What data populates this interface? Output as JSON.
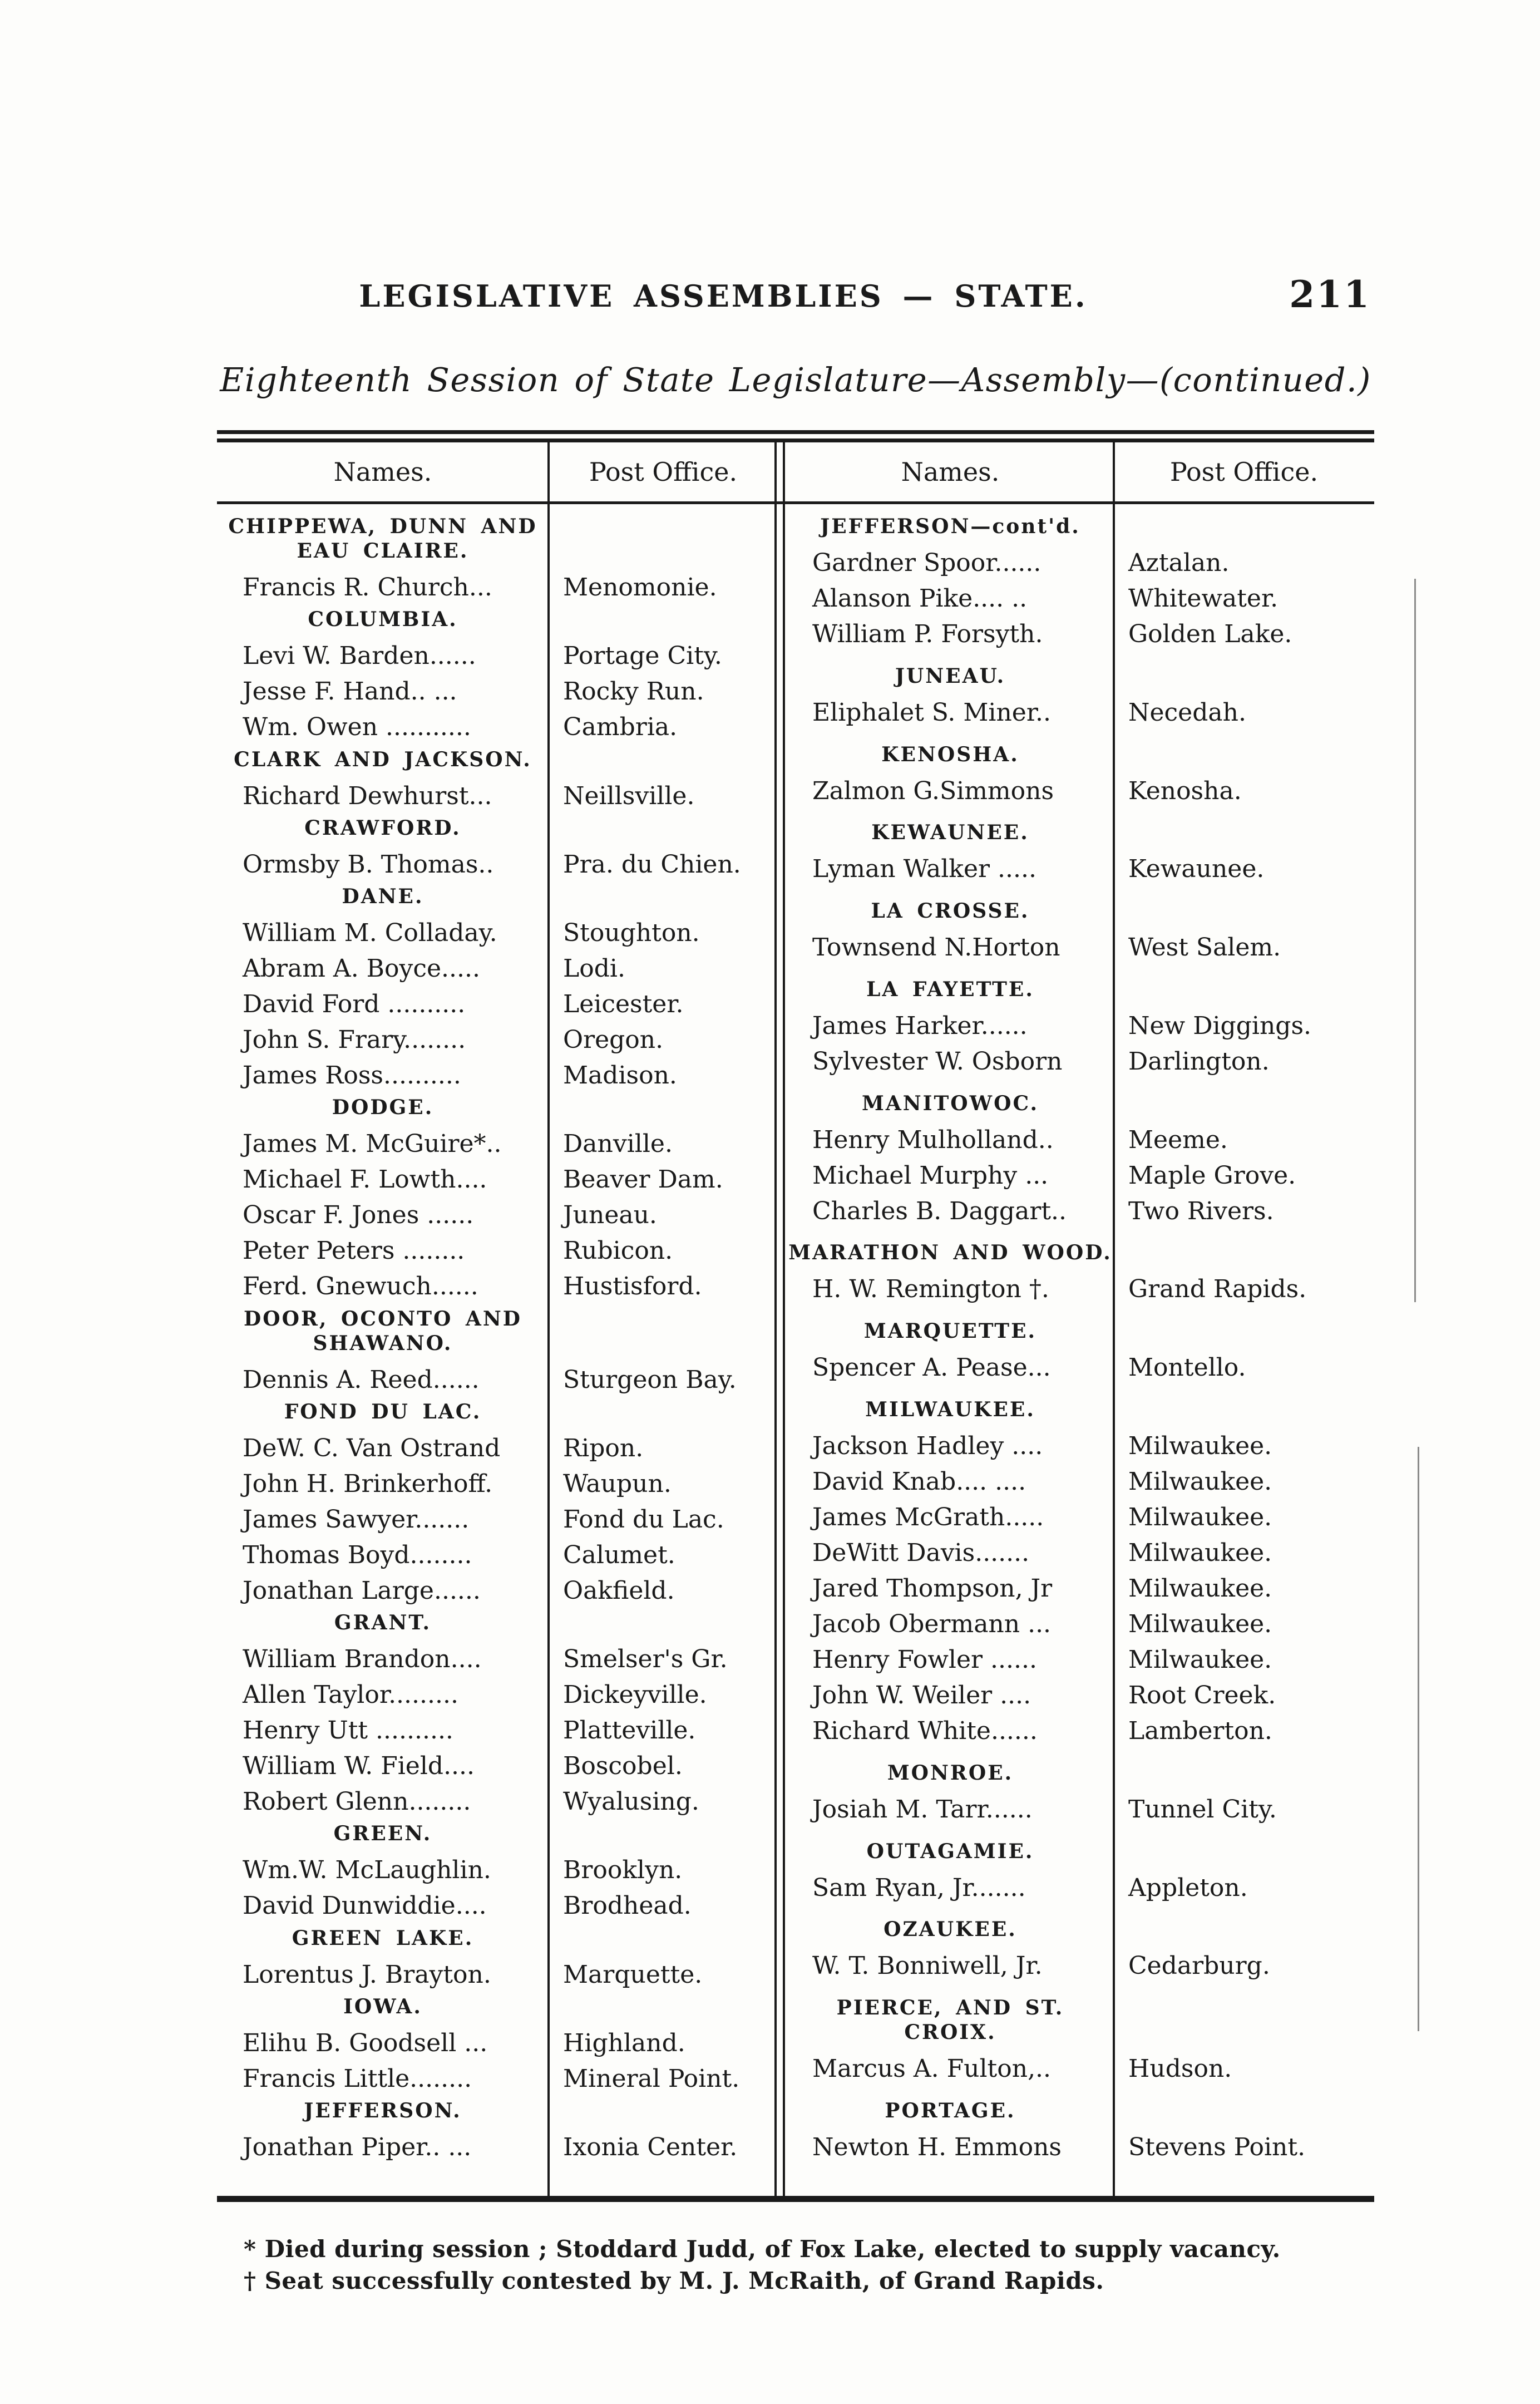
{
  "page": {
    "title": "LEGISLATIVE ASSEMBLIES — STATE.",
    "page_number": "211",
    "subtitle": "Eighteenth Session of State Legislature—Assembly—(continued.)",
    "ink_color": "#1a1a1a",
    "paper_color": "#fdfdfb"
  },
  "table": {
    "headers": {
      "names": "Names.",
      "post_office": "Post Office."
    },
    "left_sections": [
      {
        "county": "CHIPPEWA, DUNN AND EAU CLAIRE.",
        "rows": [
          {
            "name": "Francis R. Church...",
            "post_office": "Menomonie."
          }
        ]
      },
      {
        "county": "COLUMBIA.",
        "rows": [
          {
            "name": "Levi W. Barden......",
            "post_office": "Portage City."
          },
          {
            "name": "Jesse F. Hand.. ...",
            "post_office": "Rocky Run."
          },
          {
            "name": "Wm. Owen ...........",
            "post_office": "Cambria."
          }
        ]
      },
      {
        "county": "CLARK AND JACKSON.",
        "rows": [
          {
            "name": "Richard Dewhurst...",
            "post_office": "Neillsville."
          }
        ]
      },
      {
        "county": "CRAWFORD.",
        "rows": [
          {
            "name": "Ormsby B. Thomas..",
            "post_office": "Pra. du Chien."
          }
        ]
      },
      {
        "county": "DANE.",
        "rows": [
          {
            "name": "William M. Colladay.",
            "post_office": "Stoughton."
          },
          {
            "name": "Abram A. Boyce.....",
            "post_office": "Lodi."
          },
          {
            "name": "David Ford ..........",
            "post_office": "Leicester."
          },
          {
            "name": "John S. Frary........",
            "post_office": "Oregon."
          },
          {
            "name": "James Ross..........",
            "post_office": "Madison."
          }
        ]
      },
      {
        "county": "DODGE.",
        "rows": [
          {
            "name": "James M. McGuire*..",
            "post_office": "Danville."
          },
          {
            "name": "Michael F. Lowth....",
            "post_office": "Beaver Dam."
          },
          {
            "name": "Oscar F. Jones ......",
            "post_office": "Juneau."
          },
          {
            "name": "Peter Peters ........",
            "post_office": "Rubicon."
          },
          {
            "name": "Ferd. Gnewuch......",
            "post_office": "Hustisford."
          }
        ]
      },
      {
        "county": "DOOR, OCONTO AND SHAWANO.",
        "rows": [
          {
            "name": "Dennis A. Reed......",
            "post_office": "Sturgeon Bay."
          }
        ]
      },
      {
        "county": "FOND DU LAC.",
        "rows": [
          {
            "name": "DeW. C. Van Ostrand",
            "post_office": "Ripon."
          },
          {
            "name": "John H. Brinkerhoff.",
            "post_office": "Waupun."
          },
          {
            "name": "James Sawyer.......",
            "post_office": "Fond du Lac."
          },
          {
            "name": "Thomas Boyd........",
            "post_office": "Calumet."
          },
          {
            "name": "Jonathan Large......",
            "post_office": "Oakfield."
          }
        ]
      },
      {
        "county": "GRANT.",
        "rows": [
          {
            "name": "William Brandon....",
            "post_office": "Smelser's Gr."
          },
          {
            "name": "Allen Taylor.........",
            "post_office": "Dickeyville."
          },
          {
            "name": "Henry Utt ..........",
            "post_office": "Platteville."
          },
          {
            "name": "William W. Field....",
            "post_office": "Boscobel."
          },
          {
            "name": "Robert Glenn........",
            "post_office": "Wyalusing."
          }
        ]
      },
      {
        "county": "GREEN.",
        "rows": [
          {
            "name": "Wm.W. McLaughlin.",
            "post_office": "Brooklyn."
          },
          {
            "name": "David Dunwiddie....",
            "post_office": "Brodhead."
          }
        ]
      },
      {
        "county": "GREEN LAKE.",
        "rows": [
          {
            "name": "Lorentus J. Brayton.",
            "post_office": "Marquette."
          }
        ]
      },
      {
        "county": "IOWA.",
        "rows": [
          {
            "name": "Elihu B. Goodsell ...",
            "post_office": "Highland."
          },
          {
            "name": "Francis Little........",
            "post_office": "Mineral Point."
          }
        ]
      },
      {
        "county": "JEFFERSON.",
        "rows": [
          {
            "name": "Jonathan Piper.. ...",
            "post_office": "Ixonia Center."
          }
        ]
      }
    ],
    "right_sections": [
      {
        "county": "JEFFERSON—cont'd.",
        "rows": [
          {
            "name": "Gardner Spoor......",
            "post_office": "Aztalan."
          },
          {
            "name": "Alanson Pike.... ..",
            "post_office": "Whitewater."
          },
          {
            "name": "William P. Forsyth.",
            "post_office": "Golden Lake."
          }
        ]
      },
      {
        "county": "JUNEAU.",
        "rows": [
          {
            "name": "Eliphalet S. Miner..",
            "post_office": "Necedah."
          }
        ]
      },
      {
        "county": "KENOSHA.",
        "rows": [
          {
            "name": "Zalmon G.Simmons",
            "post_office": "Kenosha."
          }
        ]
      },
      {
        "county": "KEWAUNEE.",
        "rows": [
          {
            "name": "Lyman Walker .....",
            "post_office": "Kewaunee."
          }
        ]
      },
      {
        "county": "LA CROSSE.",
        "rows": [
          {
            "name": "Townsend N.Horton",
            "post_office": "West Salem."
          }
        ]
      },
      {
        "county": "LA FAYETTE.",
        "rows": [
          {
            "name": "James Harker......",
            "post_office": "New Diggings."
          },
          {
            "name": "Sylvester W. Osborn",
            "post_office": "Darlington."
          }
        ]
      },
      {
        "county": "MANITOWOC.",
        "rows": [
          {
            "name": "Henry Mulholland..",
            "post_office": "Meeme."
          },
          {
            "name": "Michael Murphy ...",
            "post_office": "Maple Grove."
          },
          {
            "name": "Charles B. Daggart..",
            "post_office": "Two Rivers."
          }
        ]
      },
      {
        "county": "MARATHON AND WOOD.",
        "rows": [
          {
            "name": "H. W. Remington †.",
            "post_office": "Grand Rapids."
          }
        ]
      },
      {
        "county": "MARQUETTE.",
        "rows": [
          {
            "name": "Spencer A. Pease...",
            "post_office": "Montello."
          }
        ]
      },
      {
        "county": "MILWAUKEE.",
        "rows": [
          {
            "name": "Jackson Hadley ....",
            "post_office": "Milwaukee."
          },
          {
            "name": "David Knab.... ....",
            "post_office": "Milwaukee."
          },
          {
            "name": "James McGrath.....",
            "post_office": "Milwaukee."
          },
          {
            "name": "DeWitt Davis.......",
            "post_office": "Milwaukee."
          },
          {
            "name": "Jared Thompson, Jr",
            "post_office": "Milwaukee."
          },
          {
            "name": "Jacob Obermann ...",
            "post_office": "Milwaukee."
          },
          {
            "name": "Henry Fowler ......",
            "post_office": "Milwaukee."
          },
          {
            "name": "John W. Weiler ....",
            "post_office": "Root Creek."
          },
          {
            "name": "Richard White......",
            "post_office": "Lamberton."
          }
        ]
      },
      {
        "county": "MONROE.",
        "rows": [
          {
            "name": "Josiah M. Tarr......",
            "post_office": "Tunnel City."
          }
        ]
      },
      {
        "county": "OUTAGAMIE.",
        "rows": [
          {
            "name": "Sam Ryan, Jr.......",
            "post_office": "Appleton."
          }
        ]
      },
      {
        "county": "OZAUKEE.",
        "rows": [
          {
            "name": "W. T. Bonniwell, Jr.",
            "post_office": "Cedarburg."
          }
        ]
      },
      {
        "county": "PIERCE, AND ST. CROIX.",
        "rows": [
          {
            "name": "Marcus A. Fulton,..",
            "post_office": "Hudson."
          }
        ]
      },
      {
        "county": "PORTAGE.",
        "rows": [
          {
            "name": "Newton H. Emmons",
            "post_office": "Stevens Point."
          }
        ]
      }
    ]
  },
  "footnotes": {
    "line1": "* Died during session ; Stoddard Judd, of Fox Lake, elected to supply vacancy.",
    "line2": "† Seat successfully contested by M. J. McRaith, of Grand Rapids."
  }
}
